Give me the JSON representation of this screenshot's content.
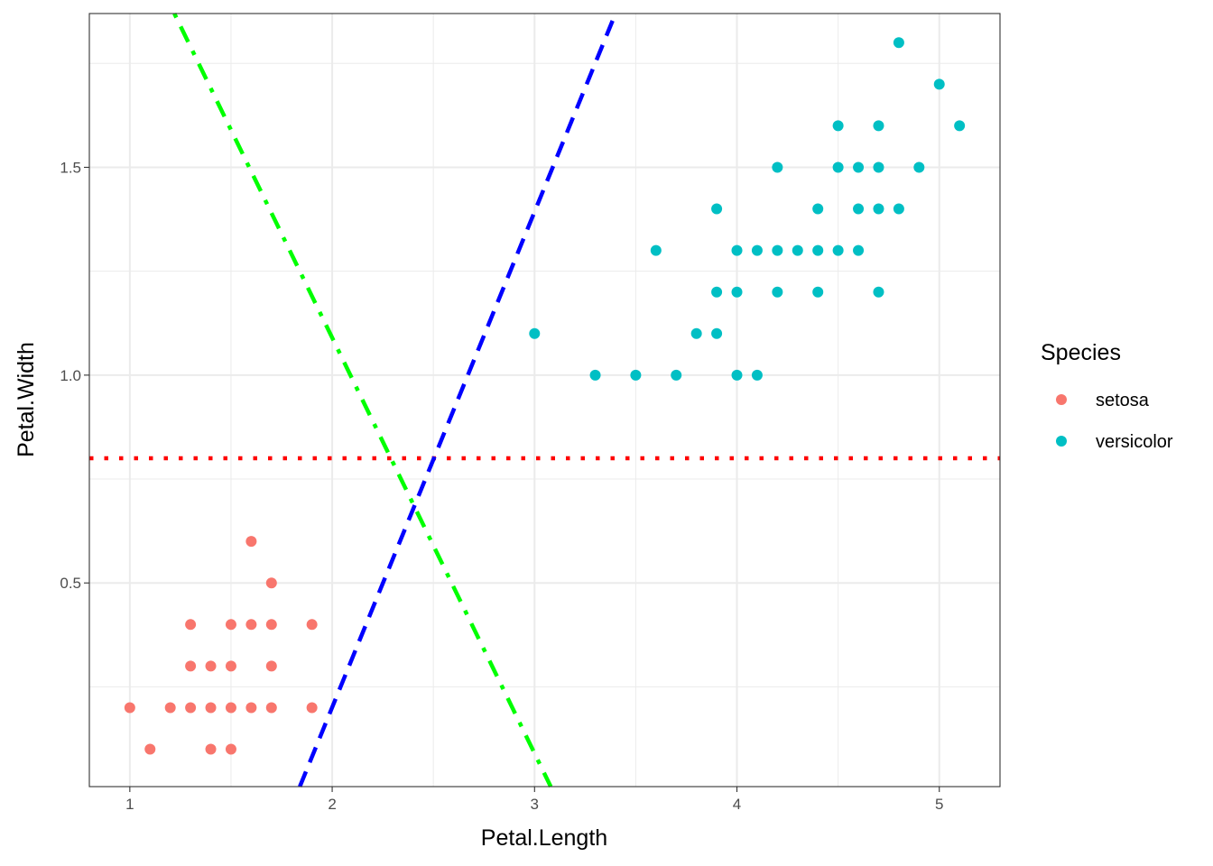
{
  "chart_data": {
    "type": "scatter",
    "title": "",
    "xlabel": "Petal.Length",
    "ylabel": "Petal.Width",
    "xlim": [
      0.8,
      5.3
    ],
    "ylim": [
      0.01,
      1.87
    ],
    "x_ticks": [
      1,
      2,
      3,
      4,
      5
    ],
    "x_tick_labels": [
      "1",
      "2",
      "3",
      "4",
      "5"
    ],
    "y_ticks": [
      0.5,
      1.0,
      1.5
    ],
    "y_tick_labels": [
      "0.5",
      "1.0",
      "1.5"
    ],
    "grid": true,
    "legend": {
      "title": "Species",
      "position": "right",
      "entries": [
        "setosa",
        "versicolor"
      ]
    },
    "series": [
      {
        "name": "setosa",
        "color": "#F8766D",
        "points": [
          [
            1.0,
            0.2
          ],
          [
            1.1,
            0.1
          ],
          [
            1.2,
            0.2
          ],
          [
            1.3,
            0.2
          ],
          [
            1.3,
            0.3
          ],
          [
            1.3,
            0.4
          ],
          [
            1.4,
            0.1
          ],
          [
            1.4,
            0.2
          ],
          [
            1.4,
            0.3
          ],
          [
            1.5,
            0.1
          ],
          [
            1.5,
            0.2
          ],
          [
            1.5,
            0.3
          ],
          [
            1.5,
            0.4
          ],
          [
            1.6,
            0.2
          ],
          [
            1.6,
            0.4
          ],
          [
            1.6,
            0.6
          ],
          [
            1.7,
            0.2
          ],
          [
            1.7,
            0.3
          ],
          [
            1.7,
            0.4
          ],
          [
            1.7,
            0.5
          ],
          [
            1.9,
            0.2
          ],
          [
            1.9,
            0.4
          ]
        ]
      },
      {
        "name": "versicolor",
        "color": "#00BFC4",
        "points": [
          [
            3.0,
            1.1
          ],
          [
            3.3,
            1.0
          ],
          [
            3.5,
            1.0
          ],
          [
            3.6,
            1.3
          ],
          [
            3.7,
            1.0
          ],
          [
            3.8,
            1.1
          ],
          [
            3.9,
            1.1
          ],
          [
            3.9,
            1.2
          ],
          [
            3.9,
            1.4
          ],
          [
            4.0,
            1.0
          ],
          [
            4.0,
            1.2
          ],
          [
            4.0,
            1.3
          ],
          [
            4.1,
            1.0
          ],
          [
            4.1,
            1.3
          ],
          [
            4.2,
            1.2
          ],
          [
            4.2,
            1.3
          ],
          [
            4.2,
            1.5
          ],
          [
            4.3,
            1.3
          ],
          [
            4.4,
            1.2
          ],
          [
            4.4,
            1.3
          ],
          [
            4.4,
            1.4
          ],
          [
            4.5,
            1.3
          ],
          [
            4.5,
            1.5
          ],
          [
            4.5,
            1.6
          ],
          [
            4.6,
            1.3
          ],
          [
            4.6,
            1.4
          ],
          [
            4.6,
            1.5
          ],
          [
            4.7,
            1.2
          ],
          [
            4.7,
            1.4
          ],
          [
            4.7,
            1.5
          ],
          [
            4.7,
            1.6
          ],
          [
            4.8,
            1.4
          ],
          [
            4.8,
            1.8
          ],
          [
            4.9,
            1.5
          ],
          [
            5.0,
            1.7
          ],
          [
            5.1,
            1.6
          ]
        ]
      }
    ],
    "reference_lines": [
      {
        "color": "#FF0000",
        "style": "dotted",
        "from": [
          0.8,
          0.8
        ],
        "to": [
          5.3,
          0.8
        ]
      },
      {
        "color": "#0000FF",
        "style": "dashed",
        "from": [
          1.84,
          0.01
        ],
        "to": [
          3.4,
          1.87
        ]
      },
      {
        "color": "#00FF00",
        "style": "dotdash",
        "from": [
          1.22,
          1.87
        ],
        "to": [
          3.08,
          0.01
        ]
      }
    ]
  }
}
